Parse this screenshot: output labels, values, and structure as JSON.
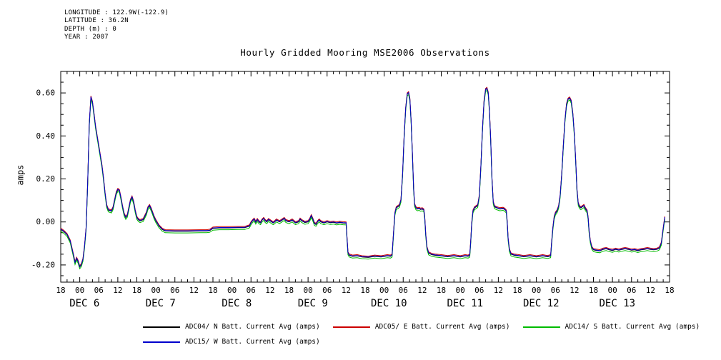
{
  "header_info": {
    "lines": [
      "LONGITUDE : 122.9W(-122.9)",
      "LATITUDE : 36.2N",
      "DEPTH (m) : 0",
      "YEAR : 2007"
    ]
  },
  "chart_data": {
    "type": "line",
    "title": "Hourly Gridded Mooring MSE2006 Observations",
    "ylabel": "amps",
    "ylim": [
      -0.28,
      0.7
    ],
    "y_major_ticks": [
      -0.2,
      0.0,
      0.2,
      0.4,
      0.6
    ],
    "y_minor_tick_step": 0.05,
    "x_range_hours": [
      0,
      192
    ],
    "x_major_tick_step_hours": 6,
    "x_minor_tick_step_hours": 2,
    "x_tick_hour_label_cycle": [
      "18",
      "00",
      "06",
      "12"
    ],
    "day_labels": [
      "DEC 6",
      "DEC 7",
      "DEC 8",
      "DEC 9",
      "DEC 10",
      "DEC 11",
      "DEC 12",
      "DEC 13"
    ],
    "grid": false,
    "legend_position": "bottom",
    "series": [
      {
        "name": "ADC04/ N Batt. Current Avg (amps)",
        "color": "#000000",
        "offset_amps": 0.0
      },
      {
        "name": "ADC05/ E Batt. Current Avg (amps)",
        "color": "#cc0000",
        "offset_amps": 0.006
      },
      {
        "name": "ADC14/ S Batt. Current Avg (amps)",
        "color": "#00bb00",
        "offset_amps": -0.008
      },
      {
        "name": "ADC15/ W Batt. Current Avg (amps)",
        "color": "#0000cc",
        "offset_amps": 0.002
      }
    ],
    "base_points_hours_amps": [
      [
        0,
        -0.035
      ],
      [
        1,
        -0.045
      ],
      [
        2,
        -0.06
      ],
      [
        3,
        -0.09
      ],
      [
        4,
        -0.155
      ],
      [
        4.5,
        -0.19
      ],
      [
        5,
        -0.17
      ],
      [
        5.5,
        -0.185
      ],
      [
        6,
        -0.21
      ],
      [
        6.5,
        -0.2
      ],
      [
        7,
        -0.175
      ],
      [
        7.5,
        -0.115
      ],
      [
        8,
        -0.03
      ],
      [
        8.5,
        0.18
      ],
      [
        9,
        0.45
      ],
      [
        9.5,
        0.58
      ],
      [
        10,
        0.555
      ],
      [
        10.5,
        0.5
      ],
      [
        11,
        0.44
      ],
      [
        12,
        0.35
      ],
      [
        13,
        0.26
      ],
      [
        13.5,
        0.2
      ],
      [
        14,
        0.13
      ],
      [
        14.5,
        0.075
      ],
      [
        15,
        0.055
      ],
      [
        16,
        0.05
      ],
      [
        16.5,
        0.065
      ],
      [
        17,
        0.1
      ],
      [
        17.5,
        0.135
      ],
      [
        18,
        0.15
      ],
      [
        18.5,
        0.145
      ],
      [
        19,
        0.11
      ],
      [
        19.5,
        0.07
      ],
      [
        20,
        0.035
      ],
      [
        20.5,
        0.02
      ],
      [
        21,
        0.03
      ],
      [
        21.5,
        0.065
      ],
      [
        22,
        0.1
      ],
      [
        22.5,
        0.115
      ],
      [
        23,
        0.09
      ],
      [
        23.5,
        0.05
      ],
      [
        24,
        0.02
      ],
      [
        24.5,
        0.01
      ],
      [
        25,
        0.005
      ],
      [
        26,
        0.01
      ],
      [
        27,
        0.04
      ],
      [
        27.5,
        0.065
      ],
      [
        28,
        0.075
      ],
      [
        28.5,
        0.06
      ],
      [
        29,
        0.04
      ],
      [
        29.5,
        0.02
      ],
      [
        30,
        0.005
      ],
      [
        31,
        -0.02
      ],
      [
        32,
        -0.035
      ],
      [
        33,
        -0.042
      ],
      [
        36,
        -0.043
      ],
      [
        40,
        -0.043
      ],
      [
        44,
        -0.042
      ],
      [
        46,
        -0.042
      ],
      [
        47,
        -0.04
      ],
      [
        48,
        -0.03
      ],
      [
        50,
        -0.028
      ],
      [
        53,
        -0.028
      ],
      [
        56,
        -0.027
      ],
      [
        58,
        -0.027
      ],
      [
        59.5,
        -0.02
      ],
      [
        60,
        -0.005
      ],
      [
        60.5,
        0.005
      ],
      [
        61,
        0.012
      ],
      [
        61.5,
        -0.002
      ],
      [
        62,
        0.01
      ],
      [
        62.5,
        0
      ],
      [
        63,
        -0.005
      ],
      [
        63.5,
        0.008
      ],
      [
        64,
        0.015
      ],
      [
        64.5,
        0.005
      ],
      [
        65,
        0
      ],
      [
        65.5,
        0.01
      ],
      [
        66,
        0.005
      ],
      [
        67,
        -0.005
      ],
      [
        67.5,
        0
      ],
      [
        68,
        0.008
      ],
      [
        69,
        0
      ],
      [
        70,
        0.01
      ],
      [
        70.5,
        0.015
      ],
      [
        71,
        0.005
      ],
      [
        72,
        0
      ],
      [
        73,
        0.008
      ],
      [
        74,
        -0.005
      ],
      [
        75,
        0
      ],
      [
        75.5,
        0.012
      ],
      [
        76,
        0.005
      ],
      [
        77,
        -0.003
      ],
      [
        78,
        0
      ],
      [
        78.5,
        0.01
      ],
      [
        79,
        0.028
      ],
      [
        79.5,
        0.012
      ],
      [
        80,
        -0.008
      ],
      [
        80.5,
        -0.012
      ],
      [
        81,
        0
      ],
      [
        81.5,
        0.008
      ],
      [
        82,
        0
      ],
      [
        83,
        -0.005
      ],
      [
        84,
        0
      ],
      [
        85,
        -0.004
      ],
      [
        86,
        -0.002
      ],
      [
        87,
        -0.006
      ],
      [
        88,
        -0.003
      ],
      [
        89,
        -0.005
      ],
      [
        90,
        -0.006
      ],
      [
        90.3,
        -0.08
      ],
      [
        90.6,
        -0.145
      ],
      [
        91,
        -0.155
      ],
      [
        92,
        -0.16
      ],
      [
        93.5,
        -0.158
      ],
      [
        95,
        -0.163
      ],
      [
        97,
        -0.165
      ],
      [
        99,
        -0.16
      ],
      [
        101,
        -0.163
      ],
      [
        103,
        -0.158
      ],
      [
        104,
        -0.16
      ],
      [
        104.5,
        -0.155
      ],
      [
        104.8,
        -0.09
      ],
      [
        105.1,
        -0.02
      ],
      [
        105.4,
        0.04
      ],
      [
        105.8,
        0.065
      ],
      [
        106.3,
        0.07
      ],
      [
        106.8,
        0.075
      ],
      [
        107.3,
        0.1
      ],
      [
        107.8,
        0.22
      ],
      [
        108.3,
        0.4
      ],
      [
        108.8,
        0.53
      ],
      [
        109.3,
        0.595
      ],
      [
        109.7,
        0.6
      ],
      [
        110.1,
        0.57
      ],
      [
        110.5,
        0.47
      ],
      [
        110.9,
        0.32
      ],
      [
        111.3,
        0.15
      ],
      [
        111.6,
        0.08
      ],
      [
        112,
        0.065
      ],
      [
        112.5,
        0.06
      ],
      [
        113,
        0.062
      ],
      [
        113.5,
        0.058
      ],
      [
        114,
        0.06
      ],
      [
        114.5,
        0.055
      ],
      [
        114.8,
        0.02
      ],
      [
        115.1,
        -0.06
      ],
      [
        115.5,
        -0.12
      ],
      [
        116,
        -0.145
      ],
      [
        117,
        -0.152
      ],
      [
        118,
        -0.155
      ],
      [
        120,
        -0.158
      ],
      [
        122,
        -0.162
      ],
      [
        124,
        -0.158
      ],
      [
        126,
        -0.163
      ],
      [
        127.5,
        -0.158
      ],
      [
        128.5,
        -0.16
      ],
      [
        129,
        -0.155
      ],
      [
        129.3,
        -0.09
      ],
      [
        129.6,
        -0.01
      ],
      [
        130,
        0.05
      ],
      [
        130.5,
        0.065
      ],
      [
        131,
        0.07
      ],
      [
        131.5,
        0.075
      ],
      [
        132,
        0.12
      ],
      [
        132.5,
        0.26
      ],
      [
        133,
        0.43
      ],
      [
        133.5,
        0.56
      ],
      [
        134,
        0.615
      ],
      [
        134.4,
        0.62
      ],
      [
        134.8,
        0.6
      ],
      [
        135.2,
        0.52
      ],
      [
        135.6,
        0.38
      ],
      [
        136,
        0.2
      ],
      [
        136.4,
        0.09
      ],
      [
        136.8,
        0.07
      ],
      [
        137.5,
        0.065
      ],
      [
        138.5,
        0.06
      ],
      [
        139.5,
        0.062
      ],
      [
        140,
        0.058
      ],
      [
        140.5,
        0.05
      ],
      [
        140.8,
        0
      ],
      [
        141.1,
        -0.08
      ],
      [
        141.5,
        -0.13
      ],
      [
        142,
        -0.15
      ],
      [
        143,
        -0.155
      ],
      [
        144.5,
        -0.158
      ],
      [
        146,
        -0.162
      ],
      [
        148,
        -0.158
      ],
      [
        150,
        -0.163
      ],
      [
        152,
        -0.158
      ],
      [
        153.5,
        -0.162
      ],
      [
        154.5,
        -0.158
      ],
      [
        154.8,
        -0.1
      ],
      [
        155.2,
        -0.03
      ],
      [
        155.6,
        0.02
      ],
      [
        156,
        0.04
      ],
      [
        156.5,
        0.05
      ],
      [
        157,
        0.07
      ],
      [
        157.5,
        0.12
      ],
      [
        158,
        0.22
      ],
      [
        158.5,
        0.35
      ],
      [
        159,
        0.47
      ],
      [
        159.5,
        0.545
      ],
      [
        160,
        0.57
      ],
      [
        160.5,
        0.575
      ],
      [
        161,
        0.56
      ],
      [
        161.5,
        0.5
      ],
      [
        162,
        0.4
      ],
      [
        162.4,
        0.28
      ],
      [
        162.8,
        0.15
      ],
      [
        163.2,
        0.085
      ],
      [
        163.6,
        0.07
      ],
      [
        164,
        0.065
      ],
      [
        164.5,
        0.07
      ],
      [
        165,
        0.075
      ],
      [
        165.5,
        0.06
      ],
      [
        166,
        0.05
      ],
      [
        166.3,
        0.02
      ],
      [
        166.6,
        -0.04
      ],
      [
        167,
        -0.09
      ],
      [
        167.5,
        -0.12
      ],
      [
        168,
        -0.13
      ],
      [
        169,
        -0.133
      ],
      [
        170,
        -0.135
      ],
      [
        171,
        -0.128
      ],
      [
        172,
        -0.125
      ],
      [
        173,
        -0.13
      ],
      [
        174,
        -0.133
      ],
      [
        175,
        -0.128
      ],
      [
        176,
        -0.132
      ],
      [
        177,
        -0.128
      ],
      [
        178,
        -0.125
      ],
      [
        179,
        -0.128
      ],
      [
        180,
        -0.132
      ],
      [
        181,
        -0.13
      ],
      [
        182,
        -0.134
      ],
      [
        183,
        -0.13
      ],
      [
        184,
        -0.128
      ],
      [
        185,
        -0.125
      ],
      [
        186,
        -0.128
      ],
      [
        187,
        -0.13
      ],
      [
        188,
        -0.128
      ],
      [
        188.8,
        -0.122
      ],
      [
        189.4,
        -0.1
      ],
      [
        189.8,
        -0.055
      ],
      [
        190.5,
        0.02
      ]
    ]
  }
}
